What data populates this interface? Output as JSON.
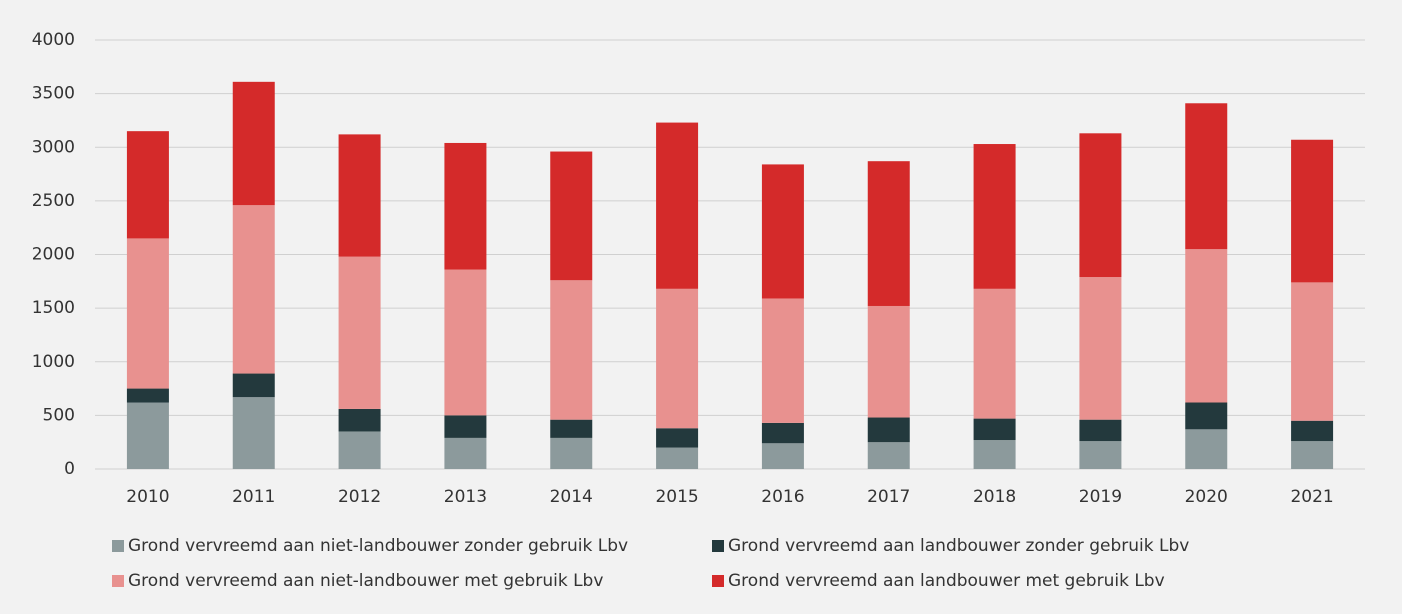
{
  "chart_data": {
    "type": "stacked_bar",
    "categories": [
      "2010",
      "2011",
      "2012",
      "2013",
      "2014",
      "2015",
      "2016",
      "2017",
      "2018",
      "2019",
      "2020",
      "2021"
    ],
    "series": [
      {
        "name": "Grond vervreemd aan niet-landbouwer zonder gebruik Lbv",
        "color": "#8c9a9c",
        "values": [
          620,
          670,
          350,
          290,
          290,
          200,
          240,
          250,
          270,
          260,
          370,
          260
        ]
      },
      {
        "name": "Grond vervreemd aan landbouwer zonder gebruik Lbv",
        "color": "#23393d",
        "values": [
          130,
          220,
          210,
          210,
          170,
          180,
          190,
          230,
          200,
          200,
          250,
          190
        ]
      },
      {
        "name": "Grond vervreemd aan niet-landbouwer met gebruik Lbv",
        "color": "#e8918f",
        "values": [
          1400,
          1570,
          1420,
          1360,
          1300,
          1300,
          1160,
          1040,
          1210,
          1330,
          1430,
          1290
        ]
      },
      {
        "name": "Grond vervreemd aan landbouwer met gebruik Lbv",
        "color": "#d42a2a",
        "values": [
          1000,
          1150,
          1140,
          1180,
          1200,
          1550,
          1250,
          1350,
          1350,
          1340,
          1360,
          1330
        ]
      }
    ],
    "ylim": [
      0,
      4000
    ],
    "yticks": [
      0,
      500,
      1000,
      1500,
      2000,
      2500,
      3000,
      3500,
      4000
    ],
    "grid": true,
    "legend": "bottom"
  }
}
